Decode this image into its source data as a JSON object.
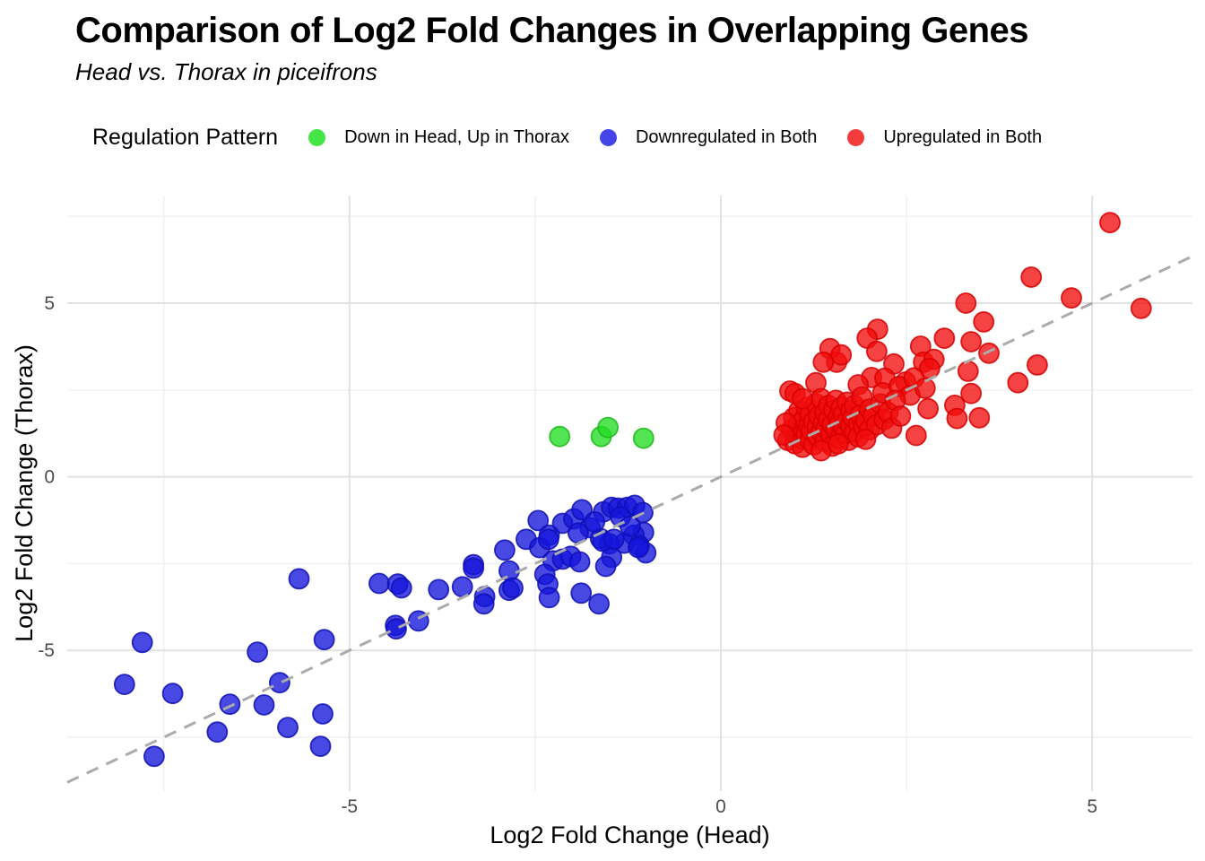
{
  "title": "Comparison of Log2 Fold Changes in Overlapping Genes",
  "subtitle": "Head vs. Thorax in piceifrons",
  "legend": {
    "title": "Regulation Pattern",
    "items": [
      {
        "label": "Down in Head, Up in Thorax",
        "color": "#44E544"
      },
      {
        "label": "Downregulated in Both",
        "color": "#4444E8"
      },
      {
        "label": "Upregulated in Both",
        "color": "#F23B3B"
      }
    ]
  },
  "colors": {
    "background": "#ffffff",
    "grid_major": "#E2E2E2",
    "grid_minor": "#F0F0F0",
    "tick_label": "#4D4D4D",
    "axis_title": "#000000",
    "reference_line": "#ABABAB"
  },
  "chart_data": {
    "type": "scatter",
    "title": "Comparison of Log2 Fold Changes in Overlapping Genes",
    "subtitle": "Head vs. Thorax in piceifrons",
    "xlabel": "Log2 Fold Change (Head)",
    "ylabel": "Log2 Fold Change (Thorax)",
    "xlim": [
      -8.8,
      6.35
    ],
    "ylim": [
      -9.05,
      8.1
    ],
    "x_major_ticks": [
      -5,
      0,
      5
    ],
    "y_major_ticks": [
      -5,
      0,
      5
    ],
    "x_minor_ticks": [
      -7.5,
      -2.5,
      2.5
    ],
    "y_minor_ticks": [
      -7.5,
      -2.5,
      2.5,
      7.5
    ],
    "grid": true,
    "legend_position": "top",
    "point_radius": 11,
    "reference_line": {
      "label": "identity",
      "slope": 1,
      "intercept": 0,
      "style": "dashed",
      "color": "#ABABAB"
    },
    "series": [
      {
        "name": "Down in Head, Up in Thorax",
        "fill": "#23DD23",
        "stroke": "#1CB81C",
        "points": [
          [
            -2.17,
            1.16
          ],
          [
            -1.61,
            1.16
          ],
          [
            -1.52,
            1.42
          ],
          [
            -1.04,
            1.11
          ]
        ]
      },
      {
        "name": "Downregulated in Both",
        "fill": "#1414DB",
        "stroke": "#0F0FB4",
        "points": [
          [
            -7.79,
            -4.77
          ],
          [
            -5.34,
            -4.69
          ],
          [
            -6.24,
            -5.05
          ],
          [
            -8.03,
            -5.98
          ],
          [
            -7.38,
            -6.24
          ],
          [
            -6.61,
            -6.55
          ],
          [
            -5.94,
            -5.93
          ],
          [
            -6.15,
            -6.57
          ],
          [
            -6.78,
            -7.35
          ],
          [
            -5.83,
            -7.22
          ],
          [
            -5.36,
            -6.83
          ],
          [
            -5.39,
            -7.76
          ],
          [
            -7.63,
            -8.05
          ],
          [
            -5.68,
            -2.94
          ],
          [
            -4.6,
            -3.07
          ],
          [
            -4.35,
            -3.09
          ],
          [
            -4.3,
            -3.2
          ],
          [
            -3.8,
            -3.25
          ],
          [
            -4.38,
            -4.28
          ],
          [
            -4.37,
            -4.38
          ],
          [
            -4.07,
            -4.15
          ],
          [
            -3.48,
            -3.17
          ],
          [
            -3.33,
            -2.53
          ],
          [
            -3.33,
            -2.63
          ],
          [
            -3.18,
            -3.45
          ],
          [
            -3.19,
            -3.66
          ],
          [
            -2.91,
            -2.11
          ],
          [
            -2.85,
            -2.71
          ],
          [
            -2.85,
            -3.27
          ],
          [
            -2.8,
            -3.2
          ],
          [
            -2.62,
            -1.8
          ],
          [
            -2.46,
            -1.26
          ],
          [
            -2.31,
            -1.68
          ],
          [
            -2.13,
            -1.34
          ],
          [
            -1.98,
            -1.21
          ],
          [
            -1.87,
            -0.95
          ],
          [
            -1.76,
            -1.47
          ],
          [
            -1.58,
            -1.01
          ],
          [
            -1.47,
            -0.88
          ],
          [
            -1.38,
            -0.9
          ],
          [
            -1.26,
            -0.88
          ],
          [
            -1.16,
            -0.82
          ],
          [
            -1.05,
            -1.03
          ],
          [
            -1.04,
            -1.6
          ],
          [
            -1.17,
            -1.68
          ],
          [
            -1.3,
            -1.91
          ],
          [
            -1.5,
            -1.93
          ],
          [
            -1.62,
            -1.78
          ],
          [
            -1.1,
            -1.98
          ],
          [
            -1.01,
            -2.19
          ],
          [
            -1.47,
            -2.32
          ],
          [
            -2.44,
            -2.04
          ],
          [
            -2.32,
            -1.8
          ],
          [
            -2.26,
            -2.42
          ],
          [
            -2.37,
            -2.81
          ],
          [
            -2.33,
            -3.09
          ],
          [
            -2.31,
            -3.48
          ],
          [
            -2.13,
            -2.37
          ],
          [
            -2.02,
            -2.29
          ],
          [
            -1.9,
            -2.45
          ],
          [
            -1.88,
            -3.35
          ],
          [
            -1.64,
            -3.66
          ],
          [
            -1.55,
            -2.58
          ],
          [
            -1.59,
            -1.86
          ],
          [
            -1.44,
            -1.8
          ],
          [
            -1.11,
            -2.04
          ],
          [
            -1.35,
            -1.15
          ],
          [
            -1.22,
            -1.42
          ],
          [
            -1.7,
            -1.3
          ],
          [
            -1.92,
            -1.62
          ]
        ]
      },
      {
        "name": "Upregulated in Both",
        "fill": "#F20D0D",
        "stroke": "#D60000",
        "points": [
          [
            5.24,
            7.32
          ],
          [
            4.18,
            5.75
          ],
          [
            4.72,
            5.15
          ],
          [
            3.3,
            5.0
          ],
          [
            5.66,
            4.85
          ],
          [
            3.54,
            4.46
          ],
          [
            2.11,
            4.25
          ],
          [
            1.97,
            3.99
          ],
          [
            2.1,
            3.61
          ],
          [
            2.69,
            3.76
          ],
          [
            3.01,
            3.99
          ],
          [
            3.37,
            3.89
          ],
          [
            3.61,
            3.56
          ],
          [
            4.26,
            3.22
          ],
          [
            1.47,
            3.69
          ],
          [
            1.56,
            3.3
          ],
          [
            1.38,
            3.3
          ],
          [
            1.62,
            3.51
          ],
          [
            2.33,
            3.25
          ],
          [
            2.73,
            3.3
          ],
          [
            2.87,
            3.38
          ],
          [
            2.81,
            3.12
          ],
          [
            2.03,
            2.86
          ],
          [
            2.21,
            2.84
          ],
          [
            2.49,
            2.73
          ],
          [
            1.28,
            2.71
          ],
          [
            1.85,
            2.65
          ],
          [
            4.0,
            2.71
          ],
          [
            3.33,
            3.04
          ],
          [
            3.37,
            2.4
          ],
          [
            3.15,
            2.06
          ],
          [
            2.79,
            1.96
          ],
          [
            3.18,
            1.68
          ],
          [
            3.48,
            1.7
          ],
          [
            2.63,
            1.19
          ],
          [
            0.93,
            2.47
          ],
          [
            0.9,
            1.05
          ],
          [
            0.95,
            1.35
          ],
          [
            0.98,
            1.7
          ],
          [
            1.0,
            0.95
          ],
          [
            1.02,
            1.2
          ],
          [
            1.05,
            1.52
          ],
          [
            1.05,
            1.9
          ],
          [
            1.08,
            1.1
          ],
          [
            1.1,
            1.38
          ],
          [
            1.1,
            0.85
          ],
          [
            1.12,
            1.65
          ],
          [
            1.15,
            1.25
          ],
          [
            1.15,
            2.0
          ],
          [
            1.18,
            1.48
          ],
          [
            1.2,
            1.05
          ],
          [
            1.2,
            1.8
          ],
          [
            1.22,
            1.33
          ],
          [
            1.25,
            1.6
          ],
          [
            1.25,
            0.92
          ],
          [
            1.28,
            2.1
          ],
          [
            1.3,
            1.18
          ],
          [
            1.3,
            1.45
          ],
          [
            1.32,
            1.75
          ],
          [
            1.35,
            1.3
          ],
          [
            1.35,
            2.25
          ],
          [
            1.38,
            1.55
          ],
          [
            1.4,
            1.02
          ],
          [
            1.4,
            1.85
          ],
          [
            1.42,
            1.4
          ],
          [
            1.45,
            1.65
          ],
          [
            1.45,
            2.05
          ],
          [
            1.48,
            1.22
          ],
          [
            1.5,
            1.5
          ],
          [
            1.5,
            0.88
          ],
          [
            1.52,
            1.92
          ],
          [
            1.55,
            1.35
          ],
          [
            1.55,
            2.2
          ],
          [
            1.58,
            1.7
          ],
          [
            1.6,
            1.1
          ],
          [
            1.6,
            1.55
          ],
          [
            1.62,
            2.0
          ],
          [
            1.65,
            1.42
          ],
          [
            1.65,
            1.8
          ],
          [
            1.68,
            1.25
          ],
          [
            1.7,
            1.6
          ],
          [
            1.7,
            2.15
          ],
          [
            1.72,
            1.05
          ],
          [
            1.75,
            1.48
          ],
          [
            1.75,
            1.9
          ],
          [
            1.78,
            1.7
          ],
          [
            1.8,
            1.3
          ],
          [
            1.8,
            2.05
          ],
          [
            1.85,
            1.55
          ],
          [
            1.85,
            1.15
          ],
          [
            1.88,
            1.78
          ],
          [
            1.9,
            2.3
          ],
          [
            1.92,
            1.45
          ],
          [
            1.95,
            1.62
          ],
          [
            2.0,
            1.35
          ],
          [
            2.0,
            1.95
          ],
          [
            2.05,
            1.75
          ],
          [
            2.1,
            1.5
          ],
          [
            2.15,
            2.1
          ],
          [
            2.2,
            1.65
          ],
          [
            2.25,
            1.85
          ],
          [
            1.0,
            2.4
          ],
          [
            1.35,
            0.75
          ],
          [
            1.1,
            2.25
          ],
          [
            0.88,
            1.55
          ],
          [
            2.3,
            1.4
          ],
          [
            1.58,
            0.95
          ],
          [
            2.18,
            2.42
          ],
          [
            0.85,
            1.2
          ],
          [
            1.95,
            1.08
          ],
          [
            2.4,
            2.6
          ],
          [
            2.55,
            2.35
          ],
          [
            2.35,
            2.2
          ],
          [
            2.6,
            2.85
          ],
          [
            2.42,
            1.75
          ],
          [
            2.75,
            2.55
          ]
        ]
      }
    ]
  }
}
